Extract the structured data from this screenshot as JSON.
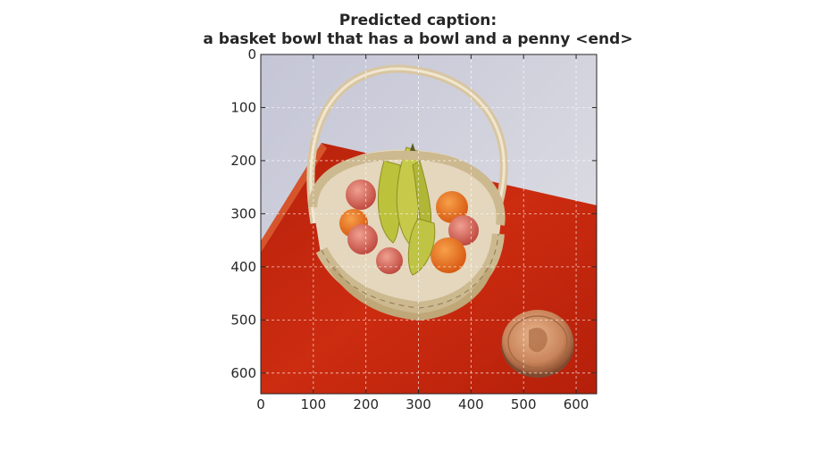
{
  "figure": {
    "title_lines": [
      "Predicted caption:",
      "a basket bowl that has a bowl and a penny <end>"
    ]
  },
  "chart_data": {
    "type": "image",
    "title": "Predicted caption:\na basket bowl that has a bowl and a penny <end>",
    "xlabel": "",
    "ylabel": "",
    "xlim": [
      0,
      639
    ],
    "ylim": [
      639,
      0
    ],
    "x_ticks": [
      0,
      100,
      200,
      300,
      400,
      500,
      600
    ],
    "y_ticks": [
      0,
      100,
      200,
      300,
      400,
      500,
      600
    ],
    "x_tick_labels": [
      "0",
      "100",
      "200",
      "300",
      "400",
      "500",
      "600"
    ],
    "y_tick_labels": [
      "0",
      "100",
      "200",
      "300",
      "400",
      "500",
      "600"
    ],
    "grid": true,
    "image_subject": "wicker basket of fruit on a red table next to a penny"
  },
  "colors": {
    "table_red": "#c62a10",
    "wall": "#cfcfd8",
    "wicker": "#d9c49a",
    "banana": "#b9bf3a",
    "orange": "#e8741c",
    "apple": "#d9706a",
    "penny": "#c98a5a"
  }
}
